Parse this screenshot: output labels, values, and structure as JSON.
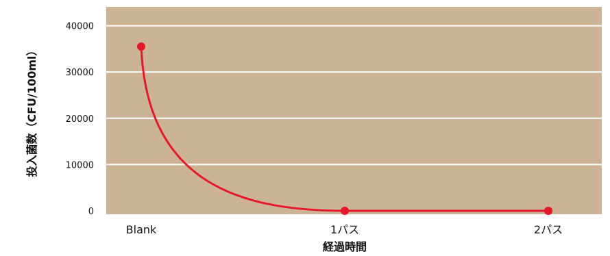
{
  "chart_data": {
    "type": "line",
    "categories": [
      "Blank",
      "1パス",
      "2パス"
    ],
    "series": [
      {
        "values": [
          35500,
          0,
          0
        ]
      }
    ],
    "xlabel": "経過時間",
    "ylabel": "投入菌数（CFU/100ml）",
    "ylim": [
      0,
      45000
    ],
    "yticks": [
      0,
      10000,
      20000,
      30000,
      40000
    ],
    "grid": true,
    "legend": "none"
  },
  "colors": {
    "plot_background": "#cdb395",
    "gridline": "#ffffff",
    "series_line": "#e4182b"
  }
}
